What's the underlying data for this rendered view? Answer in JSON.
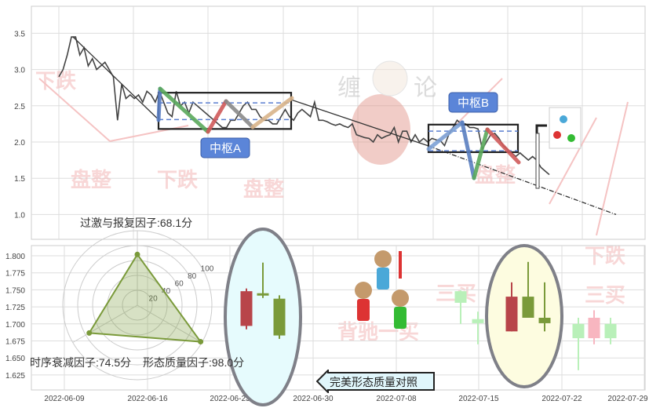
{
  "chart_data": [
    {
      "type": "line",
      "title": "",
      "ylim": [
        0.75,
        3.85
      ],
      "yticks": [
        "3.5",
        "3.0",
        "2.5",
        "2.0",
        "1.5",
        "1.0"
      ],
      "grid": true,
      "price": [
        2.9,
        3.0,
        3.2,
        3.45,
        3.45,
        3.2,
        3.3,
        3.05,
        3.15,
        3.0,
        3.05,
        3.1,
        3.0,
        2.9,
        2.3,
        2.8,
        2.6,
        2.65,
        2.6,
        2.65,
        2.55,
        2.7,
        2.65,
        2.55,
        2.7,
        2.55,
        2.4,
        2.35,
        2.7,
        2.5,
        2.55,
        2.4,
        2.55,
        2.5,
        2.45,
        2.4,
        2.35,
        2.3,
        2.25,
        2.2,
        2.2,
        2.3,
        2.3,
        2.4,
        2.5,
        2.55,
        2.45,
        2.45,
        2.35,
        2.3,
        2.3,
        2.25,
        2.25,
        2.35,
        2.45,
        2.35,
        2.3,
        2.4,
        2.45,
        2.4,
        2.35,
        2.55,
        2.3,
        2.3,
        2.28,
        2.25,
        2.23,
        2.25,
        2.22,
        2.2,
        2.25,
        2.1,
        2.08,
        2.06,
        2.05,
        2.0,
        2.1,
        2.05,
        2.08,
        2.1,
        2.2,
        2.0,
        2.15,
        2.15,
        2.0,
        2.1,
        2.0,
        2.05,
        2.0,
        2.05,
        2.03,
        2.02,
        1.95,
        2.1,
        2.2,
        2.3,
        2.25,
        2.25,
        2.2,
        2.2,
        2.18,
        1.9,
        2.0,
        2.1,
        2.12,
        2.05,
        1.95,
        1.9,
        1.85,
        1.8,
        1.85,
        1.8,
        1.75,
        1.8,
        1.75,
        1.65,
        1.6,
        1.55
      ],
      "zhongshu": [
        {
          "label": "中枢A",
          "high": 2.68,
          "low": 2.18,
          "upper_dash": 2.54,
          "lower_dash": 2.31
        },
        {
          "label": "中枢B",
          "high": 2.24,
          "low": 1.86,
          "upper_dash": 2.15,
          "lower_dash": 1.88
        }
      ],
      "trend_lines": [
        {
          "from": 3.45,
          "to": 2.33
        },
        {
          "from": 2.58,
          "to": 1.95
        },
        {
          "from": 1.95,
          "to": 1.0
        }
      ],
      "segment_colors": [
        "#5b7fc4",
        "#5aa95c",
        "#d05a5a",
        "#8a8a8a",
        "#d9b48a",
        "#7ea2d6",
        "#5a7fc0",
        "#5aa95c",
        "#d05a5a"
      ]
    },
    {
      "type": "candlestick",
      "x_ticks": [
        "2022-06-09",
        "2022-06-16",
        "2022-06-23",
        "2022-06-30",
        "2022-07-08",
        "2022-07-15",
        "2022-07-22",
        "2022-07-29"
      ],
      "yticks": [
        "1.800",
        "1.775",
        "1.750",
        "1.725",
        "1.700",
        "1.675",
        "1.650",
        "1.625"
      ],
      "ylim": [
        1.61,
        1.815
      ],
      "grid": true,
      "reference_candles": [
        {
          "open": 1.697,
          "close": 1.748,
          "high": 1.752,
          "low": 1.692,
          "color": "#b8454a"
        },
        {
          "open": 1.745,
          "close": 1.743,
          "high": 1.79,
          "low": 1.738,
          "color": "#7a9a3a"
        },
        {
          "open": 1.737,
          "close": 1.683,
          "high": 1.742,
          "low": 1.678,
          "color": "#7a9a3a"
        }
      ],
      "current_candles": [
        {
          "open": 1.689,
          "close": 1.74,
          "high": 1.761,
          "low": 1.689,
          "color": "#b8454a"
        },
        {
          "open": 1.74,
          "close": 1.709,
          "high": 1.791,
          "low": 1.709,
          "color": "#7a9a3a"
        },
        {
          "open": 1.709,
          "close": 1.701,
          "high": 1.761,
          "low": 1.689,
          "color": "#7a9a3a"
        }
      ],
      "faded_candles": [
        {
          "open": 1.748,
          "close": 1.731,
          "high": 1.749,
          "low": 1.7,
          "color": "#b9f0b9"
        },
        {
          "open": 1.707,
          "close": 1.701,
          "high": 1.718,
          "low": 1.67,
          "color": "#b9f0b9"
        },
        {
          "open": 1.7,
          "close": 1.679,
          "high": 1.709,
          "low": 1.632,
          "color": "#b9f0b9"
        },
        {
          "open": 1.679,
          "close": 1.709,
          "high": 1.72,
          "low": 1.67,
          "color": "#f8b6c0"
        },
        {
          "open": 1.7,
          "close": 1.679,
          "high": 1.709,
          "low": 1.67,
          "color": "#b9f0b9"
        }
      ]
    },
    {
      "type": "radar",
      "rings": [
        "20",
        "40",
        "60",
        "80",
        "100"
      ],
      "max": 100,
      "factors": [
        {
          "label": "过激与报复因子:68.1分",
          "value": 68.1
        },
        {
          "label": "形态质量因子:98.0分",
          "value": 98.0
        },
        {
          "label": "时序衰减因子:74.5分",
          "value": 74.5
        }
      ],
      "color": "#7a9a3a"
    }
  ],
  "annotations": {
    "compare_label": "完美形态质量对照",
    "watermark_logo": "缠论",
    "watermarks": [
      "下跌",
      "盘整",
      "下跌",
      "盘整",
      "盘整",
      "下跌",
      "背驰一买",
      "三买",
      "类三买",
      "三买"
    ]
  }
}
